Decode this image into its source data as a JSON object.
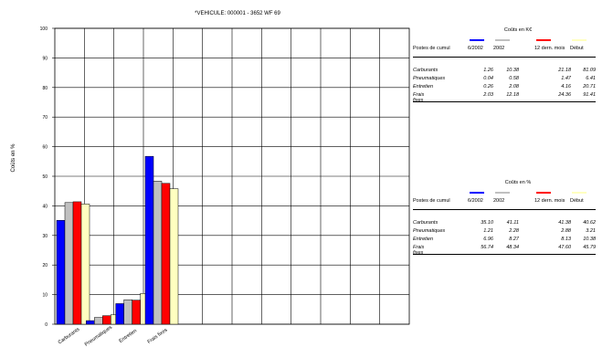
{
  "chart_data": {
    "type": "bar",
    "title": "*VEHICULE: 000001 - 3652 WF 69",
    "ylabel": "Coûts en %",
    "ylim": [
      0,
      100
    ],
    "yticks": [
      0,
      10,
      20,
      30,
      40,
      50,
      60,
      70,
      80,
      90,
      100
    ],
    "grid": true,
    "categories": [
      "Carburants",
      "Pneumatiques",
      "Entretien",
      "Frais fixes"
    ],
    "series": [
      {
        "name": "6/2002",
        "color": "#0000ff",
        "values": [
          35.1,
          1.21,
          6.96,
          56.74
        ]
      },
      {
        "name": "2002",
        "color": "#c0c0c0",
        "values": [
          41.11,
          2.28,
          8.27,
          48.34
        ]
      },
      {
        "name": "12 dern. mois",
        "color": "#ff0000",
        "values": [
          41.38,
          2.88,
          8.13,
          47.6
        ]
      },
      {
        "name": "Début",
        "color": "#ffffc0",
        "values": [
          40.62,
          3.21,
          10.38,
          45.79
        ]
      }
    ]
  },
  "table_k": {
    "title": "Coûts en K€",
    "header": [
      "Postes de cumul",
      "6/2002",
      "2002",
      "12 dern. mois",
      "Début"
    ],
    "rows": [
      {
        "label": "Carburants",
        "values": [
          "1.26",
          "10.38",
          "21.18",
          "81.09"
        ]
      },
      {
        "label": "Pneumatiques",
        "values": [
          "0.04",
          "0.58",
          "1.47",
          "6.41"
        ]
      },
      {
        "label": "Entretien",
        "values": [
          "0.26",
          "2.08",
          "4.16",
          "20.71"
        ]
      },
      {
        "label": "Frais fixes",
        "values": [
          "2.03",
          "12.18",
          "24.36",
          "91.41"
        ]
      }
    ]
  },
  "table_pct": {
    "title": "Coûts en %",
    "header": [
      "Postes de cumul",
      "6/2002",
      "2002",
      "12 dern. mois",
      "Début"
    ],
    "rows": [
      {
        "label": "Carburants",
        "values": [
          "35.10",
          "41.11",
          "41.38",
          "40.62"
        ]
      },
      {
        "label": "Pneumatiques",
        "values": [
          "1.21",
          "2.28",
          "2.88",
          "3.21"
        ]
      },
      {
        "label": "Entretien",
        "values": [
          "6.96",
          "8.27",
          "8.13",
          "10.38"
        ]
      },
      {
        "label": "Frais fixes",
        "values": [
          "56.74",
          "48.34",
          "47.60",
          "45.79"
        ]
      }
    ]
  }
}
